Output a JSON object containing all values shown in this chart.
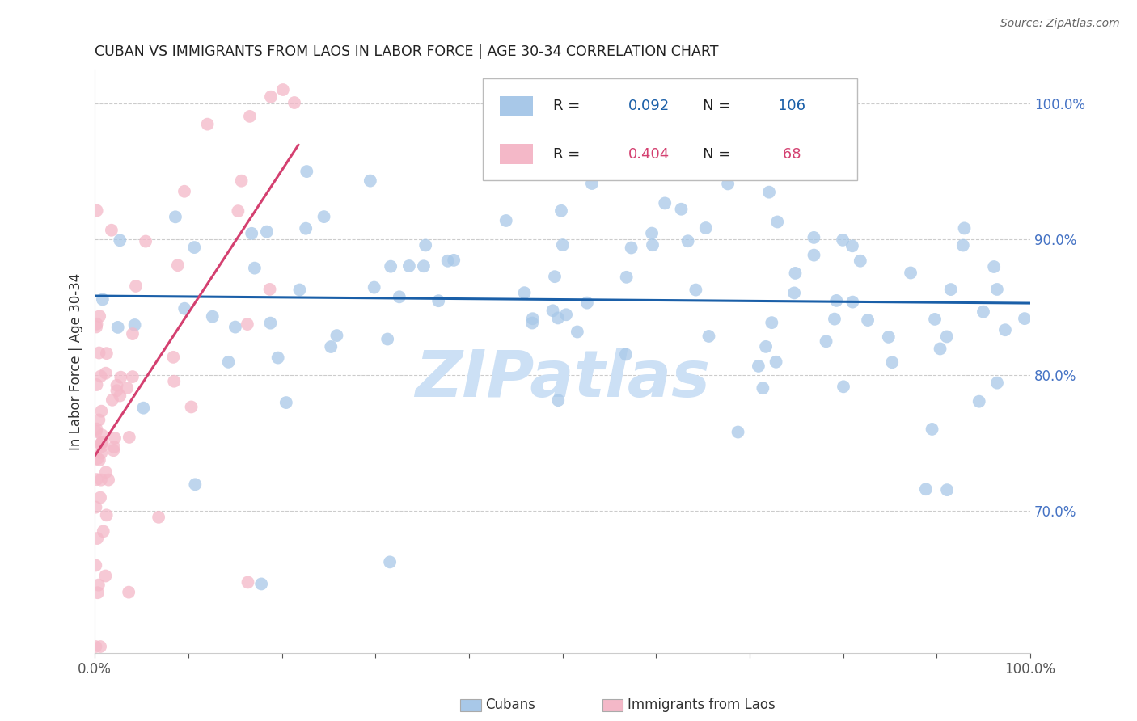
{
  "title": "CUBAN VS IMMIGRANTS FROM LAOS IN LABOR FORCE | AGE 30-34 CORRELATION CHART",
  "source": "Source: ZipAtlas.com",
  "ylabel": "In Labor Force | Age 30-34",
  "right_yticks": [
    0.7,
    0.8,
    0.9,
    1.0
  ],
  "right_ytick_labels": [
    "70.0%",
    "80.0%",
    "90.0%",
    "100.0%"
  ],
  "watermark": "ZIPatlas",
  "blue_color": "#a8c8e8",
  "pink_color": "#f4b8c8",
  "blue_line_color": "#1a5fa8",
  "pink_line_color": "#d44070",
  "title_color": "#222222",
  "right_tick_color": "#4472c4",
  "watermark_color": "#cce0f5",
  "xlim": [
    0.0,
    1.0
  ],
  "ylim": [
    0.595,
    1.025
  ],
  "cubans_seed": 12345,
  "laos_seed": 67890
}
